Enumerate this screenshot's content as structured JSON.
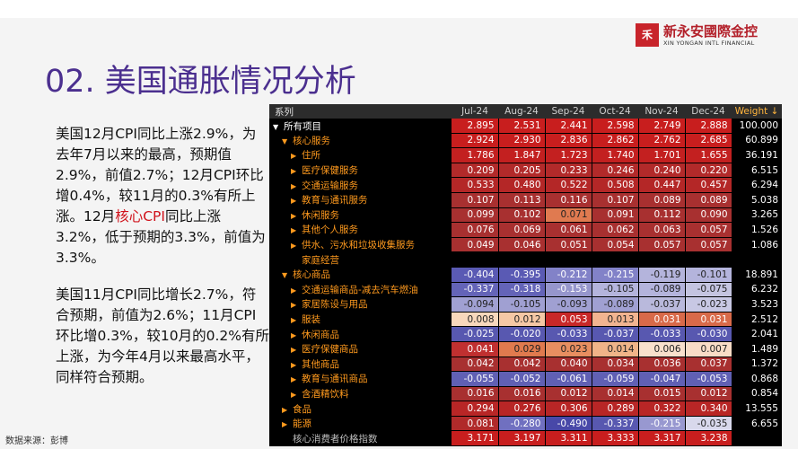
{
  "logo": {
    "mark": "禾",
    "name_cn": "新永安國際金控",
    "name_en": "XIN YONGAN INTL FINANCIAL"
  },
  "title": "02. 美国通胀情况分析",
  "paragraph1": {
    "before": "美国12月CPI同比上涨2.9%，为去年7月以来的最高，预期值2.9%，前值2.7%；12月CPI环比增0.4%，较11月的0.3%有所上涨。12月",
    "highlight": "核心CPI",
    "after": "同比上涨3.2%，低于预期的3.3%，前值为3.3%。"
  },
  "paragraph2": "美国11月CPI同比增长2.7%，符合预期，前值为2.6%；11月CPI环比增0.3%，较10月的0.2%有所上涨，为今年4月以来最高水平，同样符合预期。",
  "source": "数据来源：彭博",
  "table": {
    "label_header": "系列",
    "columns": [
      "Jul-24",
      "Aug-24",
      "Sep-24",
      "Oct-24",
      "Nov-24",
      "Dec-24"
    ],
    "weight_header": "Weight ↓",
    "rows": [
      {
        "label": "所有项目",
        "level": 0,
        "expand": "▼",
        "values": [
          "2.895",
          "2.531",
          "2.441",
          "2.598",
          "2.749",
          "2.888"
        ],
        "weight": "100.000"
      },
      {
        "label": "核心服务",
        "level": 1,
        "expand": "▼",
        "values": [
          "2.924",
          "2.930",
          "2.836",
          "2.862",
          "2.762",
          "2.685"
        ],
        "weight": "60.899"
      },
      {
        "label": "住所",
        "level": 2,
        "expand": "▶",
        "values": [
          "1.786",
          "1.847",
          "1.723",
          "1.740",
          "1.701",
          "1.655"
        ],
        "weight": "36.191"
      },
      {
        "label": "医疗保健服务",
        "level": 2,
        "expand": "▶",
        "values": [
          "0.209",
          "0.205",
          "0.233",
          "0.246",
          "0.240",
          "0.220"
        ],
        "weight": "6.515"
      },
      {
        "label": "交通运输服务",
        "level": 2,
        "expand": "▶",
        "values": [
          "0.533",
          "0.480",
          "0.522",
          "0.508",
          "0.447",
          "0.457"
        ],
        "weight": "6.294"
      },
      {
        "label": "教育与通讯服务",
        "level": 2,
        "expand": "▶",
        "values": [
          "0.107",
          "0.113",
          "0.116",
          "0.107",
          "0.089",
          "0.089"
        ],
        "weight": "5.038"
      },
      {
        "label": "休闲服务",
        "level": 2,
        "expand": "▶",
        "values": [
          "0.099",
          "0.102",
          "0.071",
          "0.091",
          "0.112",
          "0.090"
        ],
        "weight": "3.265"
      },
      {
        "label": "其他个人服务",
        "level": 2,
        "expand": "▶",
        "values": [
          "0.076",
          "0.069",
          "0.061",
          "0.062",
          "0.063",
          "0.057"
        ],
        "weight": "1.526"
      },
      {
        "label": "供水、污水和垃圾收集服务",
        "level": 2,
        "expand": "▶",
        "values": [
          "0.049",
          "0.046",
          "0.051",
          "0.054",
          "0.057",
          "0.057"
        ],
        "weight": "1.086"
      },
      {
        "label": "家庭经营",
        "level": 2,
        "expand": "",
        "values": [
          "",
          "",
          "",
          "",
          "",
          ""
        ],
        "weight": ""
      },
      {
        "label": "核心商品",
        "level": 1,
        "expand": "▼",
        "values": [
          "-0.404",
          "-0.395",
          "-0.212",
          "-0.215",
          "-0.119",
          "-0.101"
        ],
        "weight": "18.891"
      },
      {
        "label": "交通运输商品-减去汽车燃油",
        "level": 2,
        "expand": "▶",
        "values": [
          "-0.337",
          "-0.318",
          "-0.153",
          "-0.105",
          "-0.089",
          "-0.075"
        ],
        "weight": "6.232"
      },
      {
        "label": "家居陈设与用品",
        "level": 2,
        "expand": "▶",
        "values": [
          "-0.094",
          "-0.105",
          "-0.093",
          "-0.089",
          "-0.037",
          "-0.023"
        ],
        "weight": "3.523"
      },
      {
        "label": "服装",
        "level": 2,
        "expand": "▶",
        "values": [
          "0.008",
          "0.012",
          "0.053",
          "0.013",
          "0.031",
          "0.031"
        ],
        "weight": "2.512"
      },
      {
        "label": "休闲商品",
        "level": 2,
        "expand": "▶",
        "values": [
          "-0.025",
          "-0.020",
          "-0.033",
          "-0.037",
          "-0.033",
          "-0.030"
        ],
        "weight": "2.041"
      },
      {
        "label": "医疗保健商品",
        "level": 2,
        "expand": "▶",
        "values": [
          "0.041",
          "0.029",
          "0.023",
          "0.014",
          "0.006",
          "0.007"
        ],
        "weight": "1.489"
      },
      {
        "label": "其他商品",
        "level": 2,
        "expand": "▶",
        "values": [
          "0.042",
          "0.042",
          "0.040",
          "0.034",
          "0.036",
          "0.037"
        ],
        "weight": "1.372"
      },
      {
        "label": "教育与通讯商品",
        "level": 2,
        "expand": "▶",
        "values": [
          "-0.055",
          "-0.052",
          "-0.061",
          "-0.059",
          "-0.047",
          "-0.053"
        ],
        "weight": "0.868"
      },
      {
        "label": "含酒精饮料",
        "level": 2,
        "expand": "▶",
        "values": [
          "0.016",
          "0.016",
          "0.012",
          "0.014",
          "0.015",
          "0.012"
        ],
        "weight": "0.854"
      },
      {
        "label": "食品",
        "level": 1,
        "expand": "▶",
        "values": [
          "0.294",
          "0.276",
          "0.306",
          "0.289",
          "0.322",
          "0.340"
        ],
        "weight": "13.555"
      },
      {
        "label": "能源",
        "level": 1,
        "expand": "▶",
        "values": [
          "0.081",
          "-0.280",
          "-0.490",
          "-0.337",
          "-0.215",
          "-0.035"
        ],
        "weight": "6.655"
      },
      {
        "label": "核心消费者价格指数",
        "level": 1,
        "expand": "",
        "values": [
          "3.171",
          "3.197",
          "3.311",
          "3.333",
          "3.317",
          "3.238"
        ],
        "weight": ""
      }
    ],
    "cell_colors": [
      [
        "#c81e1e",
        "#c81e1e",
        "#c81e1e",
        "#c81e1e",
        "#c81e1e",
        "#c81e1e"
      ],
      [
        "#c81e1e",
        "#c81e1e",
        "#c81e1e",
        "#c81e1e",
        "#c81e1e",
        "#c81e1e"
      ],
      [
        "#c32020",
        "#c32020",
        "#c32020",
        "#c32020",
        "#c32020",
        "#c32020"
      ],
      [
        "#b22a2a",
        "#b22a2a",
        "#b22a2a",
        "#b22a2a",
        "#b22a2a",
        "#b22a2a"
      ],
      [
        "#b42727",
        "#b42727",
        "#b42727",
        "#b42727",
        "#b42727",
        "#b42727"
      ],
      [
        "#a83030",
        "#a83030",
        "#a83030",
        "#a83030",
        "#a83030",
        "#a83030"
      ],
      [
        "#a83030",
        "#a83030",
        "#e07a50",
        "#a83030",
        "#a83030",
        "#a83030"
      ],
      [
        "#a83030",
        "#a83030",
        "#a83030",
        "#a83030",
        "#a83030",
        "#a83030"
      ],
      [
        "#a83030",
        "#a83030",
        "#a83030",
        "#a83030",
        "#a83030",
        "#a83030"
      ],
      [
        "#000000",
        "#000000",
        "#000000",
        "#000000",
        "#000000",
        "#000000"
      ],
      [
        "#5a5ab4",
        "#5a5ab4",
        "#8282c8",
        "#8282c8",
        "#b4b4dc",
        "#b4b4dc"
      ],
      [
        "#6464b8",
        "#6464b8",
        "#9696cc",
        "#b4b4dc",
        "#b4b4dc",
        "#c4c4e0"
      ],
      [
        "#a0a0d2",
        "#a0a0d2",
        "#a0a0d2",
        "#a0a0d2",
        "#b9b9dc",
        "#c8c8e4"
      ],
      [
        "#f8d8bc",
        "#f5c8a5",
        "#c82828",
        "#f2b490",
        "#d86a4a",
        "#d86a4a"
      ],
      [
        "#5858b0",
        "#5858b0",
        "#5858b0",
        "#5858b0",
        "#5858b0",
        "#5858b0"
      ],
      [
        "#c03030",
        "#e07a4e",
        "#e88e60",
        "#f0b488",
        "#f8e0cc",
        "#f8dcc6"
      ],
      [
        "#a83030",
        "#a83030",
        "#a83030",
        "#a83030",
        "#a83030",
        "#a83030"
      ],
      [
        "#6060b4",
        "#6060b4",
        "#6060b4",
        "#6060b4",
        "#6060b4",
        "#6060b4"
      ],
      [
        "#a83030",
        "#a83030",
        "#a83030",
        "#a83030",
        "#a83030",
        "#a83030"
      ],
      [
        "#b82626",
        "#b82626",
        "#b82626",
        "#b82626",
        "#b82626",
        "#b82626"
      ],
      [
        "#b02a2a",
        "#7070c0",
        "#4848a8",
        "#5858b0",
        "#9898d0",
        "#d8d8ec"
      ],
      [
        "#c81e1e",
        "#c81e1e",
        "#c81e1e",
        "#c81e1e",
        "#c81e1e",
        "#c81e1e"
      ]
    ]
  }
}
